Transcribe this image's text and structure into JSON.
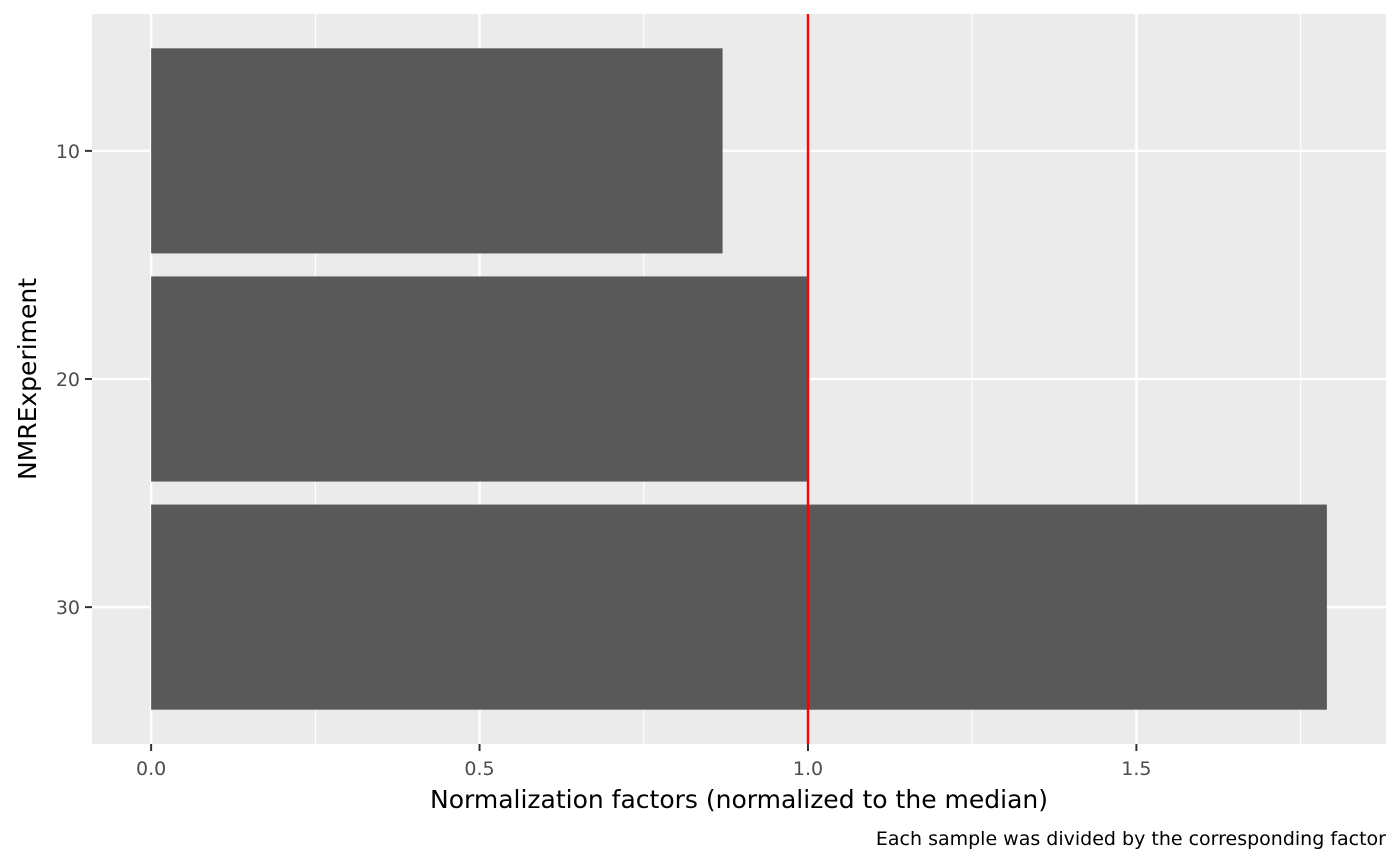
{
  "chart_data": {
    "type": "bar",
    "orientation": "horizontal",
    "categories": [
      "10",
      "20",
      "30"
    ],
    "values": [
      0.87,
      1.0,
      1.79
    ],
    "xlabel": "Normalization factors (normalized to the median)",
    "ylabel": "NMRExperiment",
    "caption": "Each sample was divided by the corresponding factor",
    "xlim": [
      -0.09,
      1.88
    ],
    "xticks": [
      0.0,
      0.5,
      1.0,
      1.5
    ],
    "xtick_labels": [
      "0.0",
      "0.5",
      "1.0",
      "1.5"
    ],
    "reference_line": {
      "x": 1.0,
      "color": "#ff0000"
    },
    "grid": true,
    "legend": "none",
    "colors": {
      "bar": "#595959",
      "panel_background": "#ebebeb",
      "grid": "#ffffff",
      "tick_text": "#4d4d4d",
      "tick_mark": "#333333"
    }
  }
}
